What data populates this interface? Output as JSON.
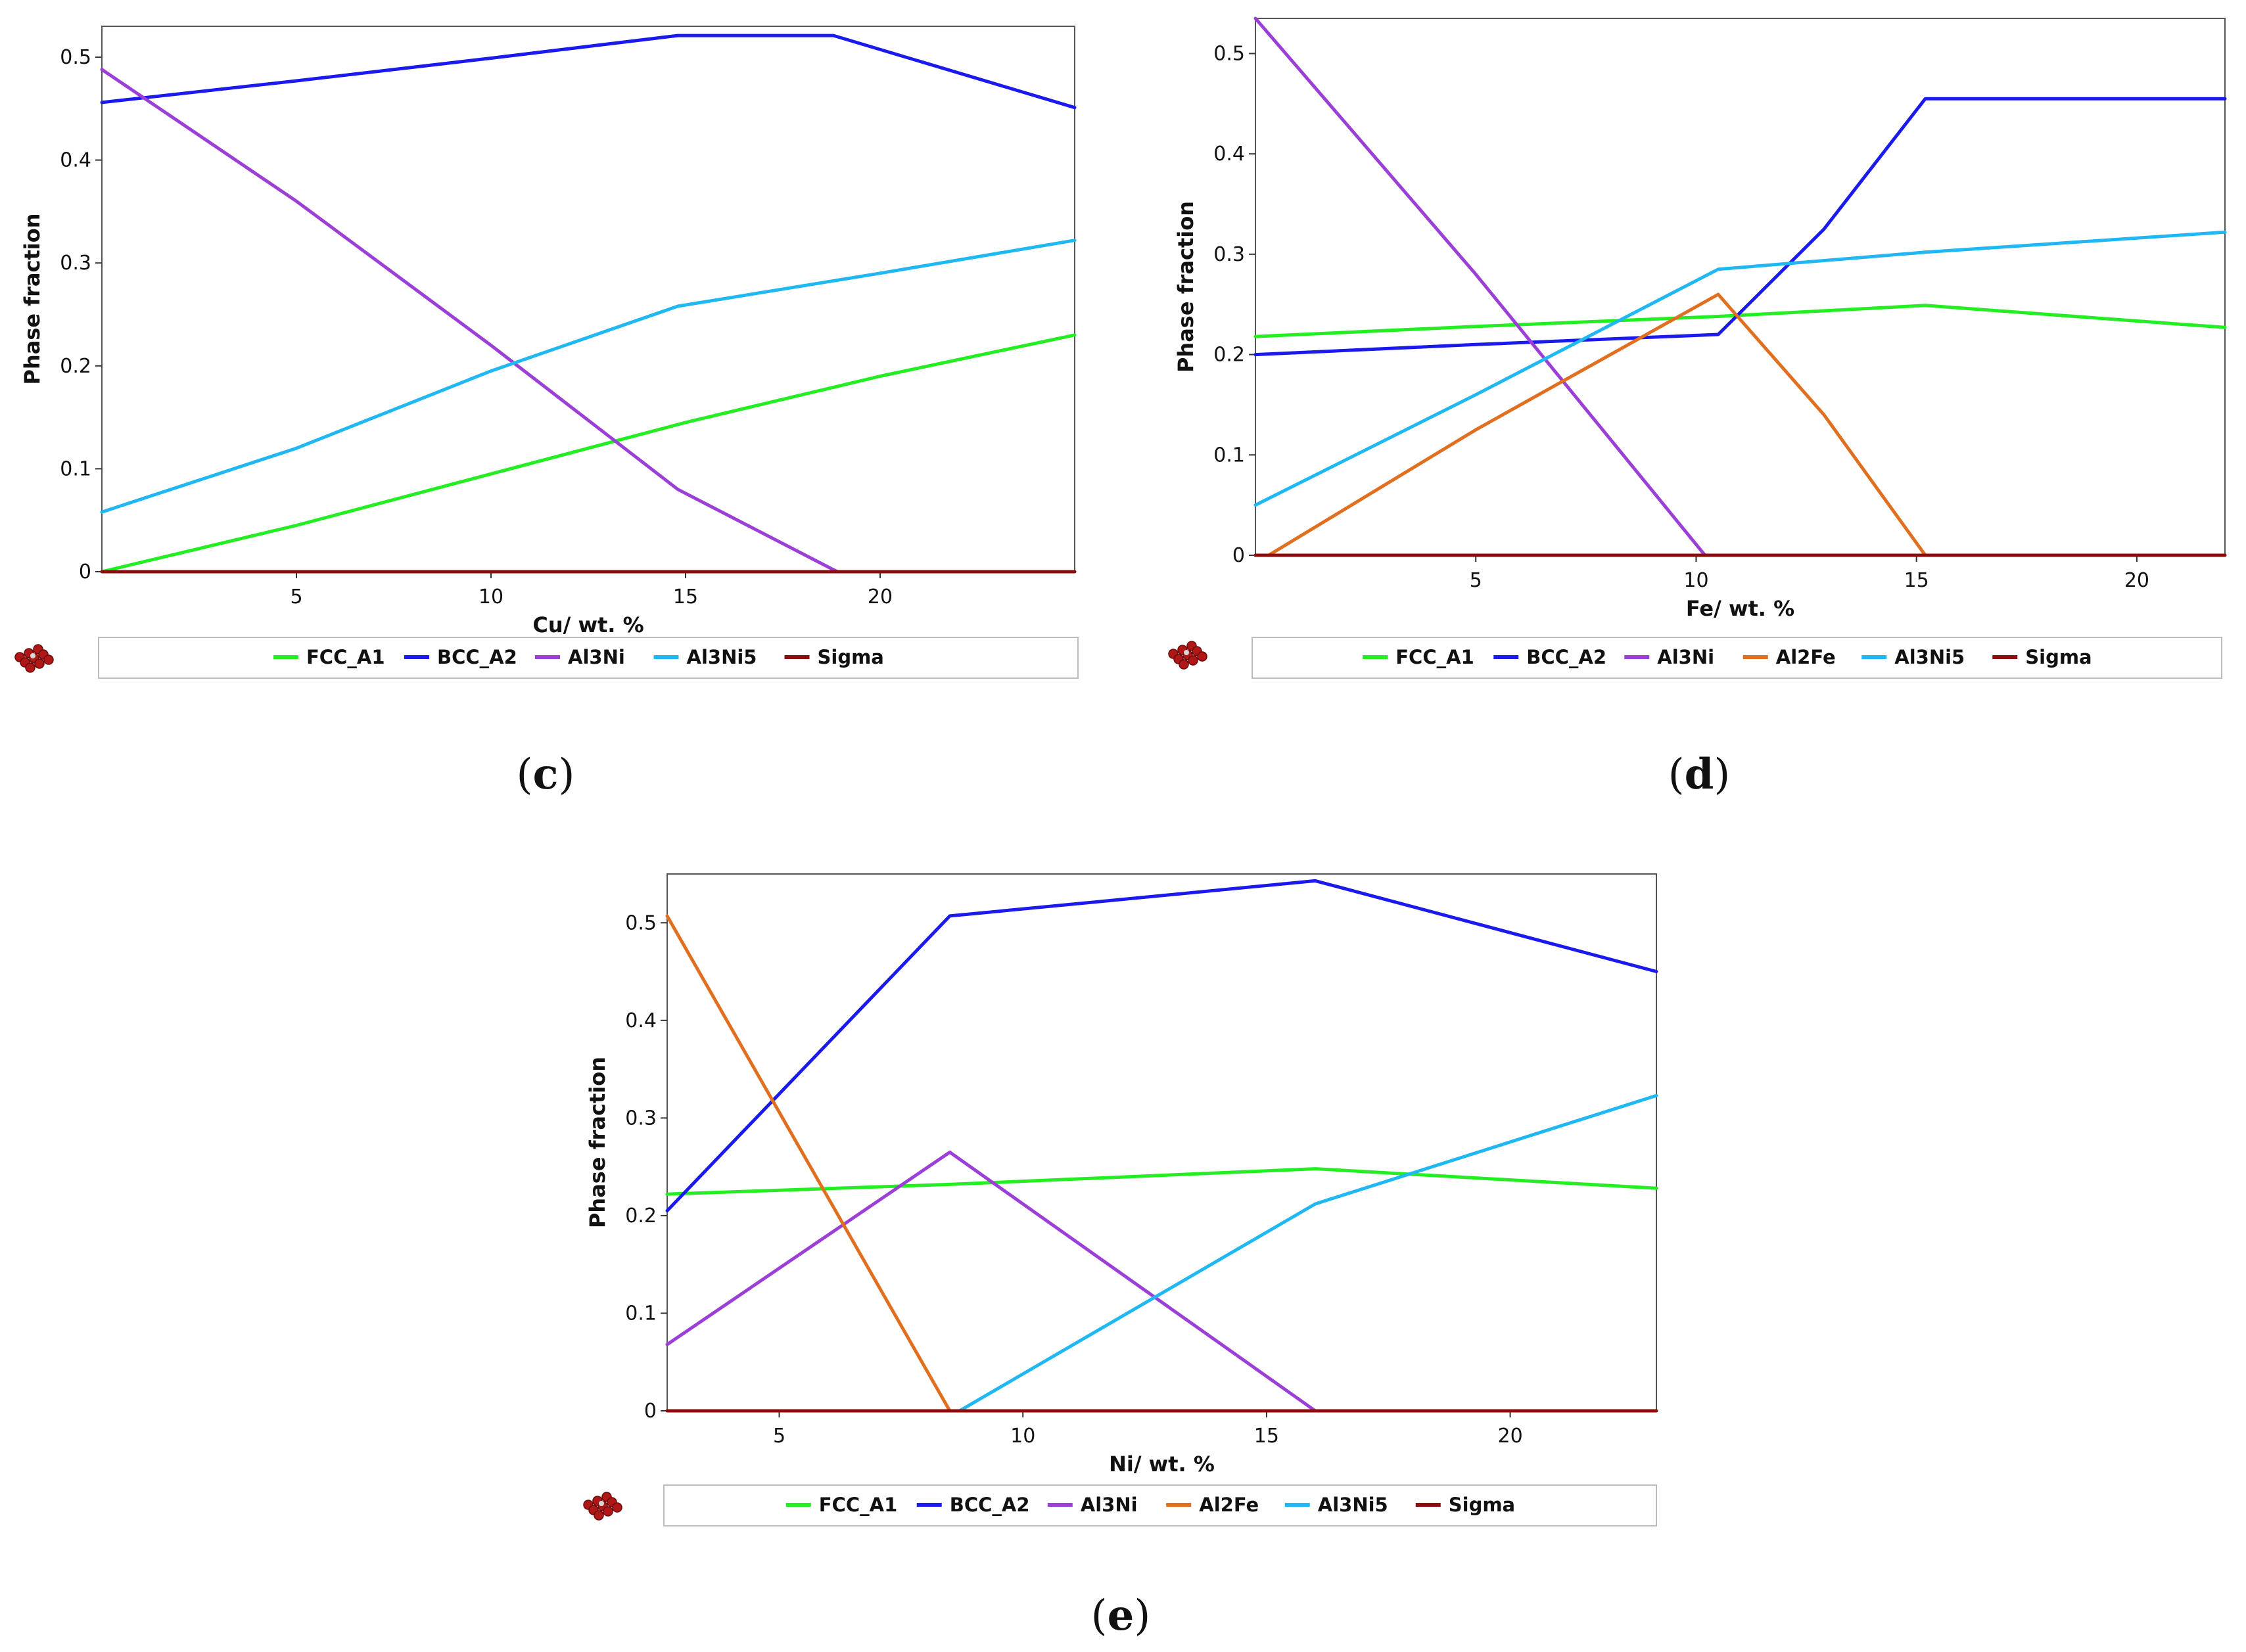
{
  "chart_data": [
    {
      "type": "line",
      "panel_label": "c",
      "xlabel": "Cu/ wt. %",
      "ylabel": "Phase fraction",
      "xlim": [
        0,
        25
      ],
      "ylim": [
        0,
        0.53
      ],
      "xticks": [
        5,
        10,
        15,
        20
      ],
      "yticks": [
        0,
        0.1,
        0.2,
        0.3,
        0.4,
        0.5
      ],
      "legend_position": "bottom",
      "series": [
        {
          "name": "FCC_A1",
          "x": [
            0,
            5,
            10,
            15,
            20,
            25
          ],
          "y": [
            0,
            0.045,
            0.095,
            0.145,
            0.19,
            0.23
          ]
        },
        {
          "name": "BCC_A2",
          "x": [
            0,
            5,
            10,
            14.8,
            18.8,
            25
          ],
          "y": [
            0.456,
            0.477,
            0.499,
            0.521,
            0.521,
            0.451
          ]
        },
        {
          "name": "Al3Ni",
          "x": [
            0,
            5,
            10,
            14.8,
            18.9
          ],
          "y": [
            0.488,
            0.36,
            0.22,
            0.08,
            0
          ]
        },
        {
          "name": "Al3Ni5",
          "x": [
            0,
            5,
            10,
            14.8,
            20,
            25
          ],
          "y": [
            0.058,
            0.12,
            0.195,
            0.258,
            0.29,
            0.322
          ]
        },
        {
          "name": "Sigma",
          "x": [
            0,
            25
          ],
          "y": [
            0,
            0
          ]
        }
      ]
    },
    {
      "type": "line",
      "panel_label": "d",
      "xlabel": "Fe/ wt. %",
      "ylabel": "Phase fraction",
      "xlim": [
        0,
        22
      ],
      "ylim": [
        0,
        0.535
      ],
      "xticks": [
        5,
        10,
        15,
        20
      ],
      "yticks": [
        0,
        0.1,
        0.2,
        0.3,
        0.4,
        0.5
      ],
      "legend_position": "bottom",
      "series": [
        {
          "name": "FCC_A1",
          "x": [
            0,
            5,
            10.5,
            15.2,
            22
          ],
          "y": [
            0.218,
            0.228,
            0.238,
            0.249,
            0.227
          ]
        },
        {
          "name": "BCC_A2",
          "x": [
            0,
            5,
            10.5,
            12.9,
            15.2,
            22
          ],
          "y": [
            0.2,
            0.21,
            0.22,
            0.325,
            0.455,
            0.455
          ]
        },
        {
          "name": "Al3Ni",
          "x": [
            0,
            5,
            10.2
          ],
          "y": [
            0.535,
            0.28,
            0
          ]
        },
        {
          "name": "Al2Fe",
          "x": [
            0.3,
            5,
            10.5,
            12.9,
            15.2
          ],
          "y": [
            0,
            0.125,
            0.26,
            0.14,
            0
          ]
        },
        {
          "name": "Al3Ni5",
          "x": [
            0,
            5,
            10.5,
            15.2,
            22
          ],
          "y": [
            0.05,
            0.16,
            0.285,
            0.302,
            0.322
          ]
        },
        {
          "name": "Sigma",
          "x": [
            0,
            22
          ],
          "y": [
            0,
            0
          ]
        }
      ]
    },
    {
      "type": "line",
      "panel_label": "e",
      "xlabel": "Ni/ wt. %",
      "ylabel": "Phase fraction",
      "xlim": [
        2.7,
        23
      ],
      "ylim": [
        0,
        0.55
      ],
      "xticks": [
        5,
        10,
        15,
        20
      ],
      "yticks": [
        0,
        0.1,
        0.2,
        0.3,
        0.4,
        0.5
      ],
      "legend_position": "bottom",
      "series": [
        {
          "name": "FCC_A1",
          "x": [
            2.7,
            8.5,
            16,
            23
          ],
          "y": [
            0.222,
            0.232,
            0.248,
            0.228
          ]
        },
        {
          "name": "BCC_A2",
          "x": [
            2.7,
            8.5,
            16,
            23
          ],
          "y": [
            0.205,
            0.507,
            0.543,
            0.45
          ]
        },
        {
          "name": "Al3Ni",
          "x": [
            2.7,
            8.5,
            16
          ],
          "y": [
            0.068,
            0.265,
            0
          ]
        },
        {
          "name": "Al2Fe",
          "x": [
            2.7,
            8.5
          ],
          "y": [
            0.507,
            0
          ]
        },
        {
          "name": "Al3Ni5",
          "x": [
            8.7,
            16,
            23
          ],
          "y": [
            0,
            0.212,
            0.323
          ]
        },
        {
          "name": "Sigma",
          "x": [
            2.7,
            23
          ],
          "y": [
            0,
            0
          ]
        }
      ]
    }
  ],
  "legend": [
    {
      "name": "FCC_A1",
      "color": "#22ee22"
    },
    {
      "name": "BCC_A2",
      "color": "#1a1aee"
    },
    {
      "name": "Al3Ni",
      "color": "#9b3fd6"
    },
    {
      "name": "Al2Fe",
      "color": "#e07020"
    },
    {
      "name": "Al3Ni5",
      "color": "#20b8f2"
    },
    {
      "name": "Sigma",
      "color": "#8b0d0d"
    }
  ],
  "legend_icon": "atom-cluster-icon",
  "captions": [
    {
      "open": "(",
      "letter": "c",
      "close": ")"
    },
    {
      "open": "(",
      "letter": "d",
      "close": ")"
    },
    {
      "open": "(",
      "letter": "e",
      "close": ")"
    }
  ]
}
